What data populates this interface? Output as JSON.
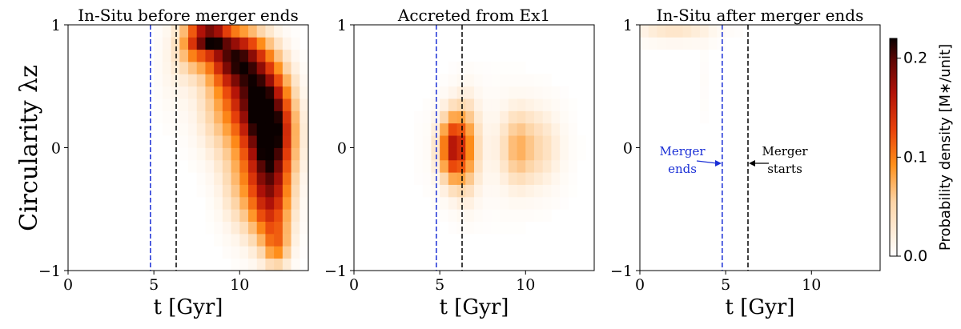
{
  "chart_data": {
    "type": "heatmap",
    "colormap": "gist_heat_r (white-orange-red-black)",
    "colorbar": {
      "label": "Probability density [M∗/unit]",
      "ticks": [
        0.0,
        0.1,
        0.2
      ],
      "tick_labels": [
        "0.0",
        "0.1",
        "0.2"
      ],
      "range": [
        0.0,
        0.22
      ]
    },
    "ylabel": "Circularity λz",
    "panels": [
      {
        "title": "In-Situ before merger ends",
        "xlabel": "t [Gyr]",
        "xlim": [
          0,
          14
        ],
        "ylim": [
          -1,
          1
        ],
        "xticks": [
          0,
          5,
          10
        ],
        "yticks": [
          -1,
          0,
          1
        ],
        "yticklabels": [
          "−1",
          "0",
          "1"
        ],
        "vlines": [
          {
            "x": 4.8,
            "color": "#1a2fd6",
            "label": "Merger ends"
          },
          {
            "x": 6.3,
            "color": "#000000",
            "label": "Merger starts"
          }
        ],
        "blobs": [
          {
            "t": 11.8,
            "lz": 0.1,
            "st": 0.9,
            "sl": 0.28,
            "amp": 0.21
          },
          {
            "t": 10.8,
            "lz": 0.45,
            "st": 1.1,
            "sl": 0.25,
            "amp": 0.16
          },
          {
            "t": 9.6,
            "lz": 0.75,
            "st": 1.1,
            "sl": 0.15,
            "amp": 0.15
          },
          {
            "t": 8.3,
            "lz": 0.9,
            "st": 0.7,
            "sl": 0.08,
            "amp": 0.16
          },
          {
            "t": 7.3,
            "lz": 0.85,
            "st": 0.6,
            "sl": 0.15,
            "amp": 0.07
          },
          {
            "t": 11.8,
            "lz": -0.45,
            "st": 0.8,
            "sl": 0.25,
            "amp": 0.12
          },
          {
            "t": 12.2,
            "lz": -0.8,
            "st": 0.5,
            "sl": 0.12,
            "amp": 0.06
          },
          {
            "t": 10.2,
            "lz": -0.25,
            "st": 0.9,
            "sl": 0.3,
            "amp": 0.05
          },
          {
            "t": 8.8,
            "lz": 0.35,
            "st": 1.0,
            "sl": 0.3,
            "amp": 0.04
          },
          {
            "t": 6.2,
            "lz": 0.7,
            "st": 0.7,
            "sl": 0.3,
            "amp": 0.015
          }
        ]
      },
      {
        "title": "Accreted from Ex1",
        "xlabel": "t [Gyr]",
        "xlim": [
          0,
          14
        ],
        "ylim": [
          -1,
          1
        ],
        "xticks": [
          0,
          5,
          10
        ],
        "yticks": [
          -1,
          0,
          1
        ],
        "yticklabels": [
          "−1",
          "0",
          "1"
        ],
        "vlines": [
          {
            "x": 4.8,
            "color": "#1a2fd6",
            "label": "Merger ends"
          },
          {
            "x": 6.3,
            "color": "#000000",
            "label": "Merger starts"
          }
        ],
        "blobs": [
          {
            "t": 5.7,
            "lz": 0.0,
            "st": 0.5,
            "sl": 0.18,
            "amp": 0.13
          },
          {
            "t": 6.5,
            "lz": 0.0,
            "st": 0.5,
            "sl": 0.25,
            "amp": 0.07
          },
          {
            "t": 9.5,
            "lz": 0.0,
            "st": 0.6,
            "sl": 0.2,
            "amp": 0.045
          },
          {
            "t": 10.8,
            "lz": 0.0,
            "st": 0.9,
            "sl": 0.22,
            "amp": 0.03
          },
          {
            "t": 8.0,
            "lz": 0.0,
            "st": 2.5,
            "sl": 0.35,
            "amp": 0.012
          }
        ]
      },
      {
        "title": "In-Situ after merger ends",
        "xlabel": "t [Gyr]",
        "xlim": [
          0,
          14
        ],
        "ylim": [
          -1,
          1
        ],
        "xticks": [
          0,
          5,
          10
        ],
        "yticks": [
          -1,
          0,
          1
        ],
        "yticklabels": [
          "−1",
          "0",
          "1"
        ],
        "vlines": [
          {
            "x": 4.8,
            "color": "#1a2fd6",
            "label": "Merger ends"
          },
          {
            "x": 6.3,
            "color": "#000000",
            "label": "Merger starts"
          }
        ],
        "annotations": [
          {
            "text": [
              "Merger",
              "ends"
            ],
            "color": "#1a2fd6",
            "target_x": 4.8,
            "target_lz": -0.12
          },
          {
            "text": [
              "Merger",
              "starts"
            ],
            "color": "#000000",
            "target_x": 6.3,
            "target_lz": -0.12
          }
        ],
        "blobs": [
          {
            "t": 2.0,
            "lz": 0.95,
            "st": 1.7,
            "sl": 0.07,
            "amp": 0.028
          },
          {
            "t": 3.8,
            "lz": 0.55,
            "st": 0.3,
            "sl": 0.3,
            "amp": 0.004
          }
        ]
      }
    ]
  }
}
